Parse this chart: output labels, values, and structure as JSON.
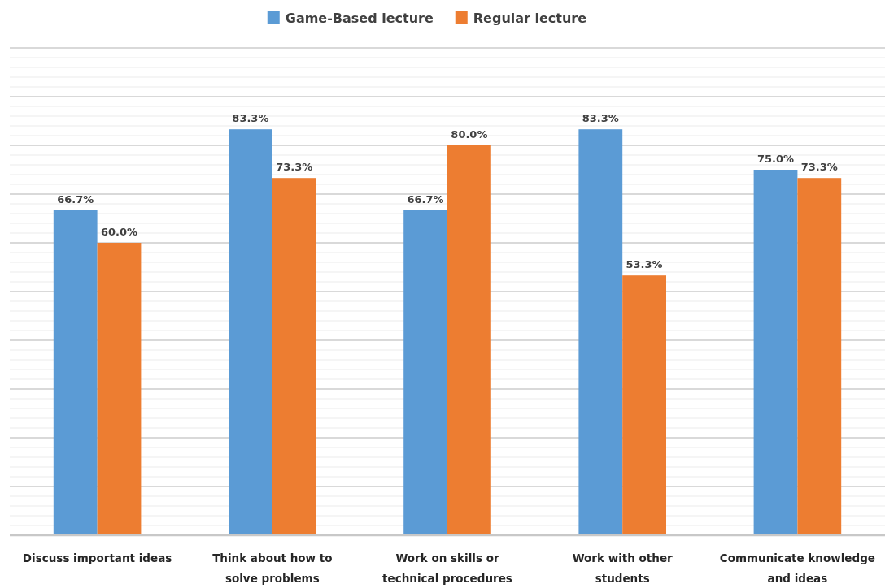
{
  "chart_data": {
    "type": "bar",
    "categories": [
      "Discuss important ideas",
      "Think about how to solve problems",
      "Work on skills or technical procedures",
      "Work with other students",
      "Communicate knowledge and ideas"
    ],
    "series": [
      {
        "name": "Game-Based lecture",
        "color": "#5b9bd5",
        "values": [
          66.7,
          83.3,
          66.7,
          83.3,
          75.0
        ],
        "value_labels": [
          "66.7%",
          "83.3%",
          "66.7%",
          "83.3%",
          "75.0%"
        ]
      },
      {
        "name": "Regular lecture",
        "color": "#ed7d31",
        "values": [
          60.0,
          73.3,
          80.0,
          53.3,
          73.3
        ],
        "value_labels": [
          "60.0%",
          "73.3%",
          "80.0%",
          "53.3%",
          "73.3%"
        ]
      }
    ],
    "ylim": [
      0,
      100
    ],
    "yticks": [
      {
        "value": 0,
        "label": null
      },
      {
        "value": 2,
        "label": null
      },
      {
        "value": 4,
        "label": null
      },
      {
        "value": 6,
        "label": null
      },
      {
        "value": 8,
        "label": null
      },
      {
        "value": 10,
        "label": null
      },
      {
        "value": 12,
        "label": null
      },
      {
        "value": 14,
        "label": null
      },
      {
        "value": 16,
        "label": null
      },
      {
        "value": 18,
        "label": null
      },
      {
        "value": 20,
        "label": null
      },
      {
        "value": 22,
        "label": null
      },
      {
        "value": 24,
        "label": null
      },
      {
        "value": 26,
        "label": null
      },
      {
        "value": 28,
        "label": null
      },
      {
        "value": 30,
        "label": null
      },
      {
        "value": 32,
        "label": null
      },
      {
        "value": 34,
        "label": null
      },
      {
        "value": 36,
        "label": null
      },
      {
        "value": 38,
        "label": null
      },
      {
        "value": 40,
        "label": null
      },
      {
        "value": 42,
        "label": null
      },
      {
        "value": 44,
        "label": null
      },
      {
        "value": 46,
        "label": null
      },
      {
        "value": 48,
        "label": null
      },
      {
        "value": 50,
        "label": null
      },
      {
        "value": 52,
        "label": null
      },
      {
        "value": 54,
        "label": null
      },
      {
        "value": 56,
        "label": null
      },
      {
        "value": 58,
        "label": null
      },
      {
        "value": 60,
        "label": null
      },
      {
        "value": 62,
        "label": null
      },
      {
        "value": 64,
        "label": null
      },
      {
        "value": 66,
        "label": null
      },
      {
        "value": 68,
        "label": null
      },
      {
        "value": 70,
        "label": null
      },
      {
        "value": 72,
        "label": null
      },
      {
        "value": 74,
        "label": null
      },
      {
        "value": 76,
        "label": null
      },
      {
        "value": 78,
        "label": null
      },
      {
        "value": 80,
        "label": null
      },
      {
        "value": 82,
        "label": null
      },
      {
        "value": 84,
        "label": null
      },
      {
        "value": 86,
        "label": null
      },
      {
        "value": 88,
        "label": null
      },
      {
        "value": 90,
        "label": null
      },
      {
        "value": 92,
        "label": null
      },
      {
        "value": 94,
        "label": null
      },
      {
        "value": 96,
        "label": null
      },
      {
        "value": 98,
        "label": null
      },
      {
        "value": 100,
        "label": null
      }
    ],
    "grid": "y",
    "legend": "top",
    "tick_labels": "x"
  }
}
